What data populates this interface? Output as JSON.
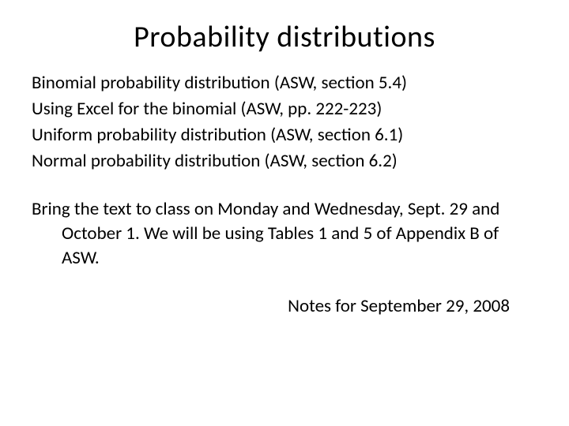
{
  "slide": {
    "title": "Probability distributions",
    "items": [
      "Binomial probability distribution (ASW, section 5.4)",
      "Using Excel for the binomial (ASW, pp. 222-223)",
      "Uniform probability distribution (ASW, section 6.1)",
      "Normal probability distribution (ASW, section 6.2)"
    ],
    "paragraph": "Bring the text to class on Monday and Wednesday, Sept. 29 and October 1.  We will be using Tables 1 and 5 of Appendix B of ASW.",
    "footer": "Notes for September 29, 2008"
  },
  "style": {
    "background_color": "#ffffff",
    "text_color": "#000000",
    "title_fontsize": 38,
    "body_fontsize": 23,
    "font_family": "Calibri, Arial, sans-serif"
  }
}
